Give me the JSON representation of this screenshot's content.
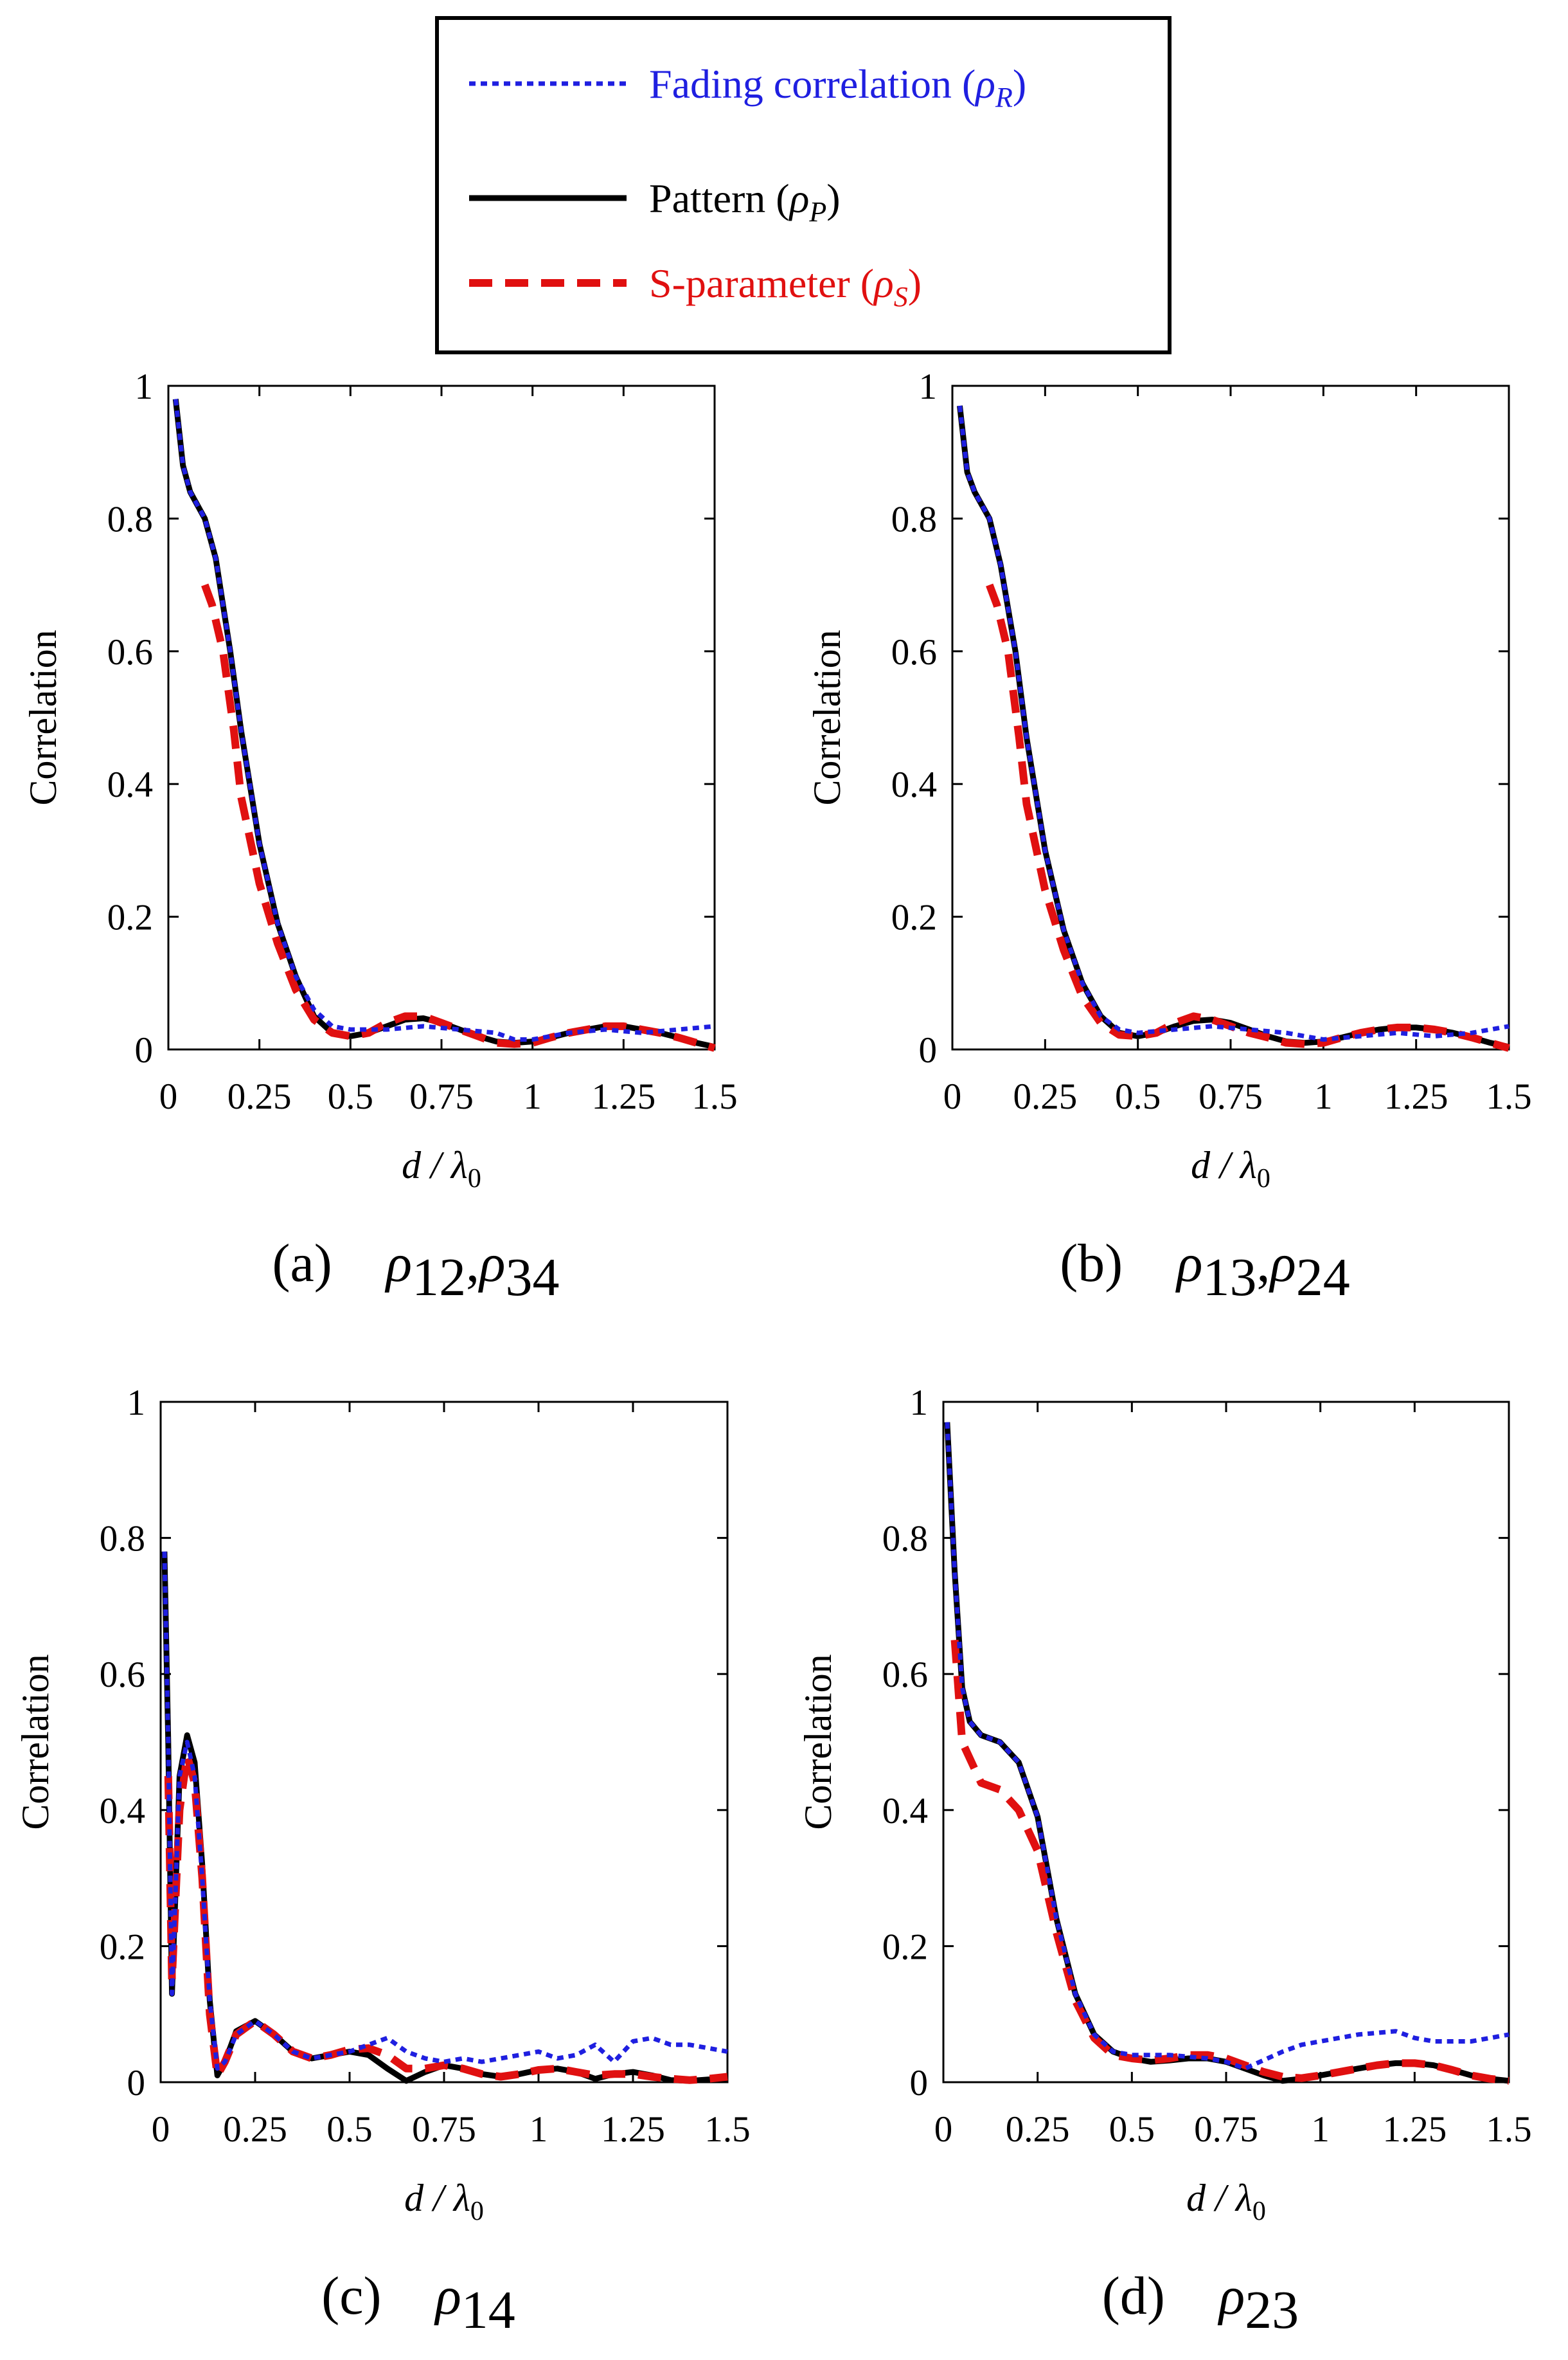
{
  "legend": {
    "items": [
      {
        "series": "R",
        "label": "Fading correlation (",
        "sym": "ρ",
        "sub": "R",
        "close": ")",
        "color": "#1f1fe0",
        "dash": "10,8",
        "width": 7
      },
      {
        "series": "P",
        "label": "Pattern (",
        "sym": "ρ",
        "sub": "P",
        "close": ")",
        "color": "#000000",
        "dash": "",
        "width": 9
      },
      {
        "series": "S",
        "label": "S-parameter (",
        "sym": "ρ",
        "sub": "S",
        "close": ")",
        "color": "#e01010",
        "dash": "36,20",
        "width": 12
      }
    ]
  },
  "chart_data": [
    {
      "type": "line",
      "panel": "a",
      "caption_letter": "(a)",
      "caption_math": "ρ",
      "caption_subs": [
        "12",
        "34"
      ],
      "xlabel": "d / λ",
      "xlabel_sub": "0",
      "ylabel": "Correlation",
      "xlim": [
        0,
        1.5
      ],
      "ylim": [
        0,
        1
      ],
      "xticks": [
        "0",
        "0.25",
        "0.5",
        "0.75",
        "1",
        "1.25",
        "1.5"
      ],
      "yticks": [
        "0",
        "0.2",
        "0.4",
        "0.6",
        "0.8",
        "1"
      ],
      "series": [
        {
          "name": "Fading correlation (ρR)",
          "key": "R",
          "x": [
            0.02,
            0.04,
            0.06,
            0.1,
            0.13,
            0.17,
            0.2,
            0.25,
            0.3,
            0.35,
            0.4,
            0.45,
            0.5,
            0.6,
            0.7,
            0.8,
            0.9,
            0.95,
            1.0,
            1.1,
            1.2,
            1.3,
            1.4,
            1.5
          ],
          "y": [
            0.98,
            0.88,
            0.84,
            0.8,
            0.74,
            0.6,
            0.48,
            0.31,
            0.19,
            0.11,
            0.06,
            0.035,
            0.03,
            0.03,
            0.035,
            0.03,
            0.025,
            0.015,
            0.015,
            0.025,
            0.03,
            0.025,
            0.03,
            0.035
          ]
        },
        {
          "name": "Pattern (ρP)",
          "key": "P",
          "x": [
            0.02,
            0.04,
            0.06,
            0.1,
            0.13,
            0.17,
            0.2,
            0.25,
            0.3,
            0.35,
            0.4,
            0.45,
            0.5,
            0.55,
            0.6,
            0.65,
            0.7,
            0.75,
            0.8,
            0.85,
            0.9,
            0.95,
            1.0,
            1.05,
            1.1,
            1.15,
            1.2,
            1.25,
            1.3,
            1.35,
            1.4,
            1.45,
            1.5
          ],
          "y": [
            0.98,
            0.88,
            0.84,
            0.8,
            0.74,
            0.6,
            0.48,
            0.31,
            0.19,
            0.11,
            0.05,
            0.025,
            0.02,
            0.025,
            0.035,
            0.045,
            0.047,
            0.04,
            0.03,
            0.02,
            0.012,
            0.01,
            0.012,
            0.018,
            0.025,
            0.03,
            0.035,
            0.035,
            0.03,
            0.025,
            0.018,
            0.01,
            0.004
          ]
        },
        {
          "name": "S-parameter (ρS)",
          "key": "S",
          "x": [
            0.1,
            0.12,
            0.15,
            0.18,
            0.2,
            0.25,
            0.3,
            0.35,
            0.4,
            0.45,
            0.5,
            0.55,
            0.6,
            0.65,
            0.7,
            0.75,
            0.8,
            0.85,
            0.9,
            0.95,
            1.0,
            1.05,
            1.1,
            1.15,
            1.2,
            1.25,
            1.3,
            1.35,
            1.4,
            1.45,
            1.5
          ],
          "y": [
            0.7,
            0.67,
            0.6,
            0.48,
            0.38,
            0.25,
            0.16,
            0.09,
            0.045,
            0.025,
            0.02,
            0.025,
            0.04,
            0.05,
            0.05,
            0.04,
            0.03,
            0.02,
            0.01,
            0.008,
            0.01,
            0.018,
            0.025,
            0.03,
            0.035,
            0.035,
            0.03,
            0.025,
            0.018,
            0.01,
            0.002
          ]
        }
      ]
    },
    {
      "type": "line",
      "panel": "b",
      "caption_letter": "(b)",
      "caption_math": "ρ",
      "caption_subs": [
        "13",
        "24"
      ],
      "xlabel": "d / λ",
      "xlabel_sub": "0",
      "ylabel": "Correlation",
      "xlim": [
        0,
        1.5
      ],
      "ylim": [
        0,
        1
      ],
      "xticks": [
        "0",
        "0.25",
        "0.5",
        "0.75",
        "1",
        "1.25",
        "1.5"
      ],
      "yticks": [
        "0",
        "0.2",
        "0.4",
        "0.6",
        "0.8",
        "1"
      ],
      "series": [
        {
          "name": "Fading correlation (ρR)",
          "key": "R",
          "x": [
            0.02,
            0.04,
            0.06,
            0.1,
            0.13,
            0.17,
            0.2,
            0.25,
            0.3,
            0.35,
            0.4,
            0.45,
            0.5,
            0.6,
            0.7,
            0.8,
            0.9,
            0.95,
            1.0,
            1.1,
            1.2,
            1.3,
            1.4,
            1.5
          ],
          "y": [
            0.97,
            0.87,
            0.84,
            0.8,
            0.73,
            0.6,
            0.47,
            0.3,
            0.18,
            0.1,
            0.05,
            0.03,
            0.025,
            0.03,
            0.035,
            0.03,
            0.025,
            0.02,
            0.015,
            0.02,
            0.025,
            0.02,
            0.025,
            0.035
          ]
        },
        {
          "name": "Pattern (ρP)",
          "key": "P",
          "x": [
            0.02,
            0.04,
            0.06,
            0.1,
            0.13,
            0.17,
            0.2,
            0.25,
            0.3,
            0.35,
            0.4,
            0.45,
            0.5,
            0.55,
            0.6,
            0.65,
            0.7,
            0.75,
            0.8,
            0.85,
            0.9,
            0.95,
            1.0,
            1.05,
            1.1,
            1.15,
            1.2,
            1.25,
            1.3,
            1.35,
            1.4,
            1.45,
            1.5
          ],
          "y": [
            0.97,
            0.87,
            0.84,
            0.8,
            0.73,
            0.6,
            0.47,
            0.3,
            0.18,
            0.1,
            0.05,
            0.025,
            0.02,
            0.025,
            0.035,
            0.043,
            0.045,
            0.04,
            0.03,
            0.02,
            0.012,
            0.01,
            0.012,
            0.018,
            0.025,
            0.03,
            0.033,
            0.033,
            0.03,
            0.025,
            0.018,
            0.01,
            0.004
          ]
        },
        {
          "name": "S-parameter (ρS)",
          "key": "S",
          "x": [
            0.1,
            0.12,
            0.15,
            0.18,
            0.2,
            0.25,
            0.3,
            0.35,
            0.4,
            0.45,
            0.5,
            0.55,
            0.6,
            0.65,
            0.7,
            0.75,
            0.8,
            0.85,
            0.9,
            0.95,
            1.0,
            1.05,
            1.1,
            1.15,
            1.2,
            1.25,
            1.3,
            1.35,
            1.4,
            1.45,
            1.5
          ],
          "y": [
            0.7,
            0.67,
            0.6,
            0.47,
            0.37,
            0.24,
            0.15,
            0.08,
            0.04,
            0.022,
            0.02,
            0.025,
            0.04,
            0.05,
            0.045,
            0.035,
            0.025,
            0.018,
            0.01,
            0.008,
            0.01,
            0.018,
            0.025,
            0.03,
            0.033,
            0.033,
            0.03,
            0.025,
            0.018,
            0.01,
            0.002
          ]
        }
      ]
    },
    {
      "type": "line",
      "panel": "c",
      "caption_letter": "(c)",
      "caption_math": "ρ",
      "caption_subs": [
        "14"
      ],
      "xlabel": "d / λ",
      "xlabel_sub": "0",
      "ylabel": "Correlation",
      "xlim": [
        0,
        1.5
      ],
      "ylim": [
        0,
        1
      ],
      "xticks": [
        "0",
        "0.25",
        "0.5",
        "0.75",
        "1",
        "1.25",
        "1.5"
      ],
      "yticks": [
        "0",
        "0.2",
        "0.4",
        "0.6",
        "0.8",
        "1"
      ],
      "series": [
        {
          "name": "Fading correlation (ρR)",
          "key": "R",
          "x": [
            0.01,
            0.02,
            0.03,
            0.05,
            0.07,
            0.09,
            0.11,
            0.13,
            0.15,
            0.17,
            0.2,
            0.25,
            0.3,
            0.35,
            0.4,
            0.45,
            0.5,
            0.55,
            0.6,
            0.65,
            0.7,
            0.75,
            0.8,
            0.85,
            0.9,
            0.95,
            1.0,
            1.05,
            1.1,
            1.15,
            1.2,
            1.25,
            1.3,
            1.35,
            1.4,
            1.45,
            1.5
          ],
          "y": [
            0.78,
            0.5,
            0.13,
            0.45,
            0.5,
            0.45,
            0.3,
            0.12,
            0.02,
            0.03,
            0.07,
            0.09,
            0.07,
            0.045,
            0.035,
            0.04,
            0.045,
            0.055,
            0.065,
            0.045,
            0.035,
            0.03,
            0.035,
            0.03,
            0.035,
            0.04,
            0.045,
            0.035,
            0.04,
            0.055,
            0.03,
            0.06,
            0.065,
            0.055,
            0.055,
            0.05,
            0.045
          ]
        },
        {
          "name": "Pattern (ρP)",
          "key": "P",
          "x": [
            0.01,
            0.02,
            0.03,
            0.05,
            0.07,
            0.09,
            0.11,
            0.13,
            0.15,
            0.17,
            0.2,
            0.25,
            0.3,
            0.35,
            0.4,
            0.45,
            0.5,
            0.55,
            0.6,
            0.65,
            0.7,
            0.75,
            0.8,
            0.85,
            0.9,
            0.95,
            1.0,
            1.05,
            1.1,
            1.15,
            1.2,
            1.25,
            1.3,
            1.35,
            1.4,
            1.45,
            1.5
          ],
          "y": [
            0.78,
            0.5,
            0.13,
            0.45,
            0.51,
            0.47,
            0.32,
            0.12,
            0.01,
            0.03,
            0.075,
            0.09,
            0.07,
            0.045,
            0.035,
            0.04,
            0.045,
            0.04,
            0.02,
            0.002,
            0.015,
            0.025,
            0.02,
            0.012,
            0.008,
            0.012,
            0.018,
            0.02,
            0.015,
            0.005,
            0.012,
            0.015,
            0.01,
            0.003,
            0.002,
            0.004,
            0.005
          ]
        },
        {
          "name": "S-parameter (ρS)",
          "key": "S",
          "x": [
            0.02,
            0.03,
            0.05,
            0.07,
            0.09,
            0.11,
            0.13,
            0.15,
            0.17,
            0.2,
            0.25,
            0.3,
            0.35,
            0.4,
            0.45,
            0.5,
            0.55,
            0.6,
            0.65,
            0.7,
            0.75,
            0.8,
            0.85,
            0.9,
            0.95,
            1.0,
            1.05,
            1.1,
            1.15,
            1.2,
            1.25,
            1.3,
            1.35,
            1.4,
            1.45,
            1.5
          ],
          "y": [
            0.45,
            0.15,
            0.4,
            0.48,
            0.44,
            0.3,
            0.1,
            0.01,
            0.03,
            0.07,
            0.09,
            0.07,
            0.045,
            0.035,
            0.04,
            0.048,
            0.05,
            0.04,
            0.02,
            0.02,
            0.025,
            0.02,
            0.012,
            0.008,
            0.012,
            0.018,
            0.02,
            0.015,
            0.01,
            0.012,
            0.012,
            0.008,
            0.005,
            0.003,
            0.005,
            0.008
          ]
        }
      ]
    },
    {
      "type": "line",
      "panel": "d",
      "caption_letter": "(d)",
      "caption_math": "ρ",
      "caption_subs": [
        "23"
      ],
      "xlabel": "d / λ",
      "xlabel_sub": "0",
      "ylabel": "Correlation",
      "xlim": [
        0,
        1.5
      ],
      "ylim": [
        0,
        1
      ],
      "xticks": [
        "0",
        "0.25",
        "0.5",
        "0.75",
        "1",
        "1.25",
        "1.5"
      ],
      "yticks": [
        "0",
        "0.2",
        "0.4",
        "0.6",
        "0.8",
        "1"
      ],
      "series": [
        {
          "name": "Fading correlation (ρR)",
          "key": "R",
          "x": [
            0.01,
            0.03,
            0.05,
            0.07,
            0.1,
            0.15,
            0.2,
            0.25,
            0.3,
            0.35,
            0.4,
            0.45,
            0.5,
            0.6,
            0.7,
            0.75,
            0.8,
            0.9,
            0.95,
            1.0,
            1.1,
            1.2,
            1.25,
            1.3,
            1.4,
            1.5
          ],
          "y": [
            0.97,
            0.75,
            0.58,
            0.53,
            0.51,
            0.5,
            0.47,
            0.39,
            0.24,
            0.13,
            0.07,
            0.045,
            0.04,
            0.04,
            0.035,
            0.03,
            0.02,
            0.045,
            0.055,
            0.06,
            0.07,
            0.075,
            0.065,
            0.06,
            0.06,
            0.07
          ]
        },
        {
          "name": "Pattern (ρP)",
          "key": "P",
          "x": [
            0.01,
            0.03,
            0.05,
            0.07,
            0.1,
            0.15,
            0.2,
            0.25,
            0.3,
            0.35,
            0.4,
            0.45,
            0.5,
            0.55,
            0.6,
            0.65,
            0.7,
            0.75,
            0.8,
            0.85,
            0.9,
            0.95,
            1.0,
            1.05,
            1.1,
            1.15,
            1.2,
            1.25,
            1.3,
            1.35,
            1.4,
            1.45,
            1.5
          ],
          "y": [
            0.97,
            0.75,
            0.58,
            0.53,
            0.51,
            0.5,
            0.47,
            0.39,
            0.24,
            0.13,
            0.07,
            0.045,
            0.035,
            0.03,
            0.032,
            0.035,
            0.035,
            0.03,
            0.02,
            0.01,
            0.002,
            0.005,
            0.01,
            0.015,
            0.02,
            0.025,
            0.028,
            0.028,
            0.025,
            0.018,
            0.01,
            0.005,
            0.002
          ]
        },
        {
          "name": "S-parameter (ρS)",
          "key": "S",
          "x": [
            0.03,
            0.05,
            0.1,
            0.15,
            0.2,
            0.25,
            0.3,
            0.35,
            0.4,
            0.45,
            0.5,
            0.55,
            0.6,
            0.65,
            0.7,
            0.75,
            0.8,
            0.85,
            0.9,
            0.95,
            1.0,
            1.05,
            1.1,
            1.15,
            1.2,
            1.25,
            1.3,
            1.35,
            1.4,
            1.45,
            1.5
          ],
          "y": [
            0.65,
            0.5,
            0.44,
            0.43,
            0.4,
            0.34,
            0.22,
            0.12,
            0.065,
            0.04,
            0.035,
            0.032,
            0.035,
            0.04,
            0.04,
            0.035,
            0.025,
            0.015,
            0.008,
            0.006,
            0.01,
            0.015,
            0.02,
            0.025,
            0.028,
            0.028,
            0.025,
            0.018,
            0.01,
            0.005,
            0.002
          ]
        }
      ]
    }
  ]
}
